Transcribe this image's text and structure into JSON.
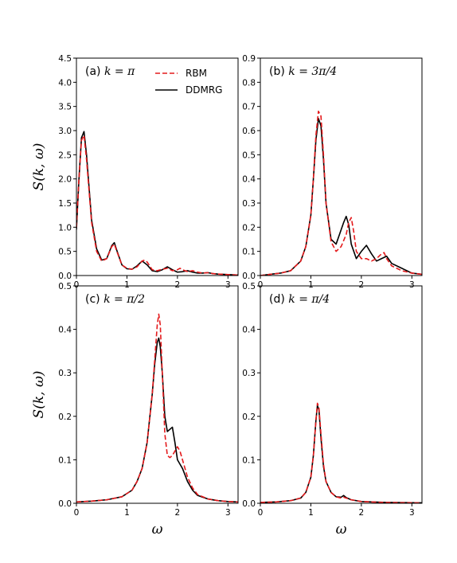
{
  "colors": {
    "RBM": "#e41a1c",
    "DDMRG": "#000000"
  },
  "chart_data": [
    {
      "type": "line",
      "panel": "(a)",
      "title_prefix": "(a) ",
      "title_math": "k = π",
      "xlabel": "",
      "ylabel": "S(k, ω)",
      "xlim": [
        0,
        3.2
      ],
      "ylim": [
        0,
        4.5
      ],
      "xticks": [
        0,
        1,
        2,
        3
      ],
      "yticks": [
        0.0,
        0.5,
        1.0,
        1.5,
        2.0,
        2.5,
        3.0,
        3.5,
        4.0,
        4.5
      ],
      "series": [
        {
          "name": "RBM",
          "style": "dashed",
          "x": [
            0,
            0.05,
            0.1,
            0.15,
            0.2,
            0.3,
            0.4,
            0.5,
            0.6,
            0.7,
            0.75,
            0.8,
            0.9,
            1.0,
            1.1,
            1.2,
            1.3,
            1.35,
            1.4,
            1.5,
            1.6,
            1.7,
            1.8,
            1.9,
            2.0,
            2.05,
            2.1,
            2.2,
            2.3,
            2.4,
            2.5,
            2.6,
            2.7,
            2.8,
            3.0,
            3.2
          ],
          "y": [
            1.0,
            2.0,
            2.8,
            2.9,
            2.4,
            1.1,
            0.5,
            0.3,
            0.35,
            0.6,
            0.65,
            0.5,
            0.22,
            0.15,
            0.13,
            0.18,
            0.3,
            0.32,
            0.28,
            0.12,
            0.1,
            0.13,
            0.15,
            0.1,
            0.12,
            0.15,
            0.12,
            0.08,
            0.1,
            0.07,
            0.05,
            0.06,
            0.04,
            0.03,
            0.02,
            0.01
          ]
        },
        {
          "name": "DDMRG",
          "style": "solid",
          "x": [
            0,
            0.05,
            0.1,
            0.15,
            0.2,
            0.3,
            0.4,
            0.5,
            0.6,
            0.7,
            0.75,
            0.8,
            0.9,
            1.0,
            1.1,
            1.2,
            1.3,
            1.4,
            1.5,
            1.6,
            1.7,
            1.8,
            1.9,
            2.0,
            2.1,
            2.2,
            2.3,
            2.4,
            2.5,
            2.6,
            2.7,
            2.8,
            3.0,
            3.2
          ],
          "y": [
            0.95,
            2.0,
            2.85,
            2.98,
            2.5,
            1.15,
            0.55,
            0.32,
            0.35,
            0.62,
            0.68,
            0.52,
            0.22,
            0.14,
            0.13,
            0.2,
            0.3,
            0.22,
            0.1,
            0.08,
            0.12,
            0.18,
            0.12,
            0.07,
            0.08,
            0.1,
            0.07,
            0.05,
            0.05,
            0.06,
            0.04,
            0.03,
            0.02,
            0.01
          ]
        }
      ]
    },
    {
      "type": "line",
      "panel": "(b)",
      "title_prefix": "(b) ",
      "title_math": "k = 3π/4",
      "xlabel": "",
      "ylabel": "",
      "xlim": [
        0,
        3.2
      ],
      "ylim": [
        0,
        0.9
      ],
      "xticks": [
        0,
        1,
        2,
        3
      ],
      "yticks": [
        0.0,
        0.1,
        0.2,
        0.3,
        0.4,
        0.5,
        0.6,
        0.7,
        0.8,
        0.9
      ],
      "series": [
        {
          "name": "RBM",
          "style": "dashed",
          "x": [
            0,
            0.2,
            0.4,
            0.6,
            0.8,
            0.9,
            1.0,
            1.05,
            1.1,
            1.15,
            1.2,
            1.25,
            1.3,
            1.4,
            1.5,
            1.6,
            1.7,
            1.75,
            1.8,
            1.85,
            1.9,
            2.0,
            2.1,
            2.2,
            2.3,
            2.4,
            2.45,
            2.5,
            2.6,
            2.8,
            3.0,
            3.2
          ],
          "y": [
            0.0,
            0.005,
            0.01,
            0.02,
            0.06,
            0.12,
            0.25,
            0.4,
            0.58,
            0.68,
            0.66,
            0.5,
            0.3,
            0.14,
            0.1,
            0.12,
            0.17,
            0.22,
            0.24,
            0.18,
            0.1,
            0.07,
            0.07,
            0.06,
            0.07,
            0.09,
            0.095,
            0.07,
            0.04,
            0.02,
            0.01,
            0.005
          ]
        },
        {
          "name": "DDMRG",
          "style": "solid",
          "x": [
            0,
            0.2,
            0.4,
            0.6,
            0.8,
            0.9,
            1.0,
            1.05,
            1.1,
            1.15,
            1.2,
            1.25,
            1.3,
            1.4,
            1.5,
            1.6,
            1.65,
            1.7,
            1.75,
            1.8,
            1.9,
            2.0,
            2.1,
            2.2,
            2.3,
            2.4,
            2.5,
            2.6,
            2.8,
            3.0,
            3.2
          ],
          "y": [
            0.0,
            0.005,
            0.01,
            0.02,
            0.06,
            0.12,
            0.25,
            0.4,
            0.56,
            0.65,
            0.62,
            0.48,
            0.3,
            0.15,
            0.13,
            0.19,
            0.22,
            0.245,
            0.21,
            0.13,
            0.07,
            0.1,
            0.125,
            0.09,
            0.06,
            0.07,
            0.08,
            0.05,
            0.03,
            0.01,
            0.005
          ]
        }
      ]
    },
    {
      "type": "line",
      "panel": "(c)",
      "title_prefix": "(c) ",
      "title_math": "k = π/2",
      "xlabel": "ω",
      "ylabel": "S(k, ω)",
      "xlim": [
        0,
        3.2
      ],
      "ylim": [
        0,
        0.5
      ],
      "xticks": [
        0,
        1,
        2,
        3
      ],
      "yticks": [
        0.0,
        0.1,
        0.2,
        0.3,
        0.4,
        0.5
      ],
      "series": [
        {
          "name": "RBM",
          "style": "dashed",
          "x": [
            0,
            0.3,
            0.6,
            0.9,
            1.1,
            1.2,
            1.3,
            1.4,
            1.5,
            1.55,
            1.6,
            1.63,
            1.66,
            1.7,
            1.75,
            1.8,
            1.85,
            1.9,
            1.95,
            2.0,
            2.05,
            2.1,
            2.2,
            2.3,
            2.4,
            2.6,
            2.8,
            3.0,
            3.2
          ],
          "y": [
            0.003,
            0.005,
            0.008,
            0.015,
            0.03,
            0.05,
            0.08,
            0.14,
            0.25,
            0.33,
            0.41,
            0.435,
            0.41,
            0.3,
            0.16,
            0.11,
            0.105,
            0.11,
            0.12,
            0.13,
            0.12,
            0.1,
            0.06,
            0.035,
            0.02,
            0.01,
            0.006,
            0.004,
            0.003
          ]
        },
        {
          "name": "DDMRG",
          "style": "solid",
          "x": [
            0,
            0.3,
            0.6,
            0.9,
            1.1,
            1.2,
            1.3,
            1.4,
            1.5,
            1.55,
            1.6,
            1.63,
            1.66,
            1.7,
            1.75,
            1.8,
            1.85,
            1.9,
            1.95,
            2.0,
            2.05,
            2.1,
            2.2,
            2.3,
            2.4,
            2.6,
            2.8,
            3.0,
            3.2
          ],
          "y": [
            0.003,
            0.005,
            0.008,
            0.015,
            0.03,
            0.05,
            0.08,
            0.14,
            0.25,
            0.32,
            0.37,
            0.38,
            0.36,
            0.3,
            0.2,
            0.165,
            0.17,
            0.175,
            0.14,
            0.1,
            0.09,
            0.08,
            0.05,
            0.03,
            0.018,
            0.01,
            0.006,
            0.004,
            0.003
          ]
        }
      ]
    },
    {
      "type": "line",
      "panel": "(d)",
      "title_prefix": "(d) ",
      "title_math": "k = π/4",
      "xlabel": "ω",
      "ylabel": "",
      "xlim": [
        0,
        3.2
      ],
      "ylim": [
        0,
        0.5
      ],
      "xticks": [
        0,
        1,
        2,
        3
      ],
      "yticks": [
        0.0,
        0.1,
        0.2,
        0.3,
        0.4,
        0.5
      ],
      "series": [
        {
          "name": "RBM",
          "style": "dashed",
          "x": [
            0,
            0.3,
            0.6,
            0.8,
            0.9,
            1.0,
            1.05,
            1.1,
            1.13,
            1.16,
            1.2,
            1.25,
            1.3,
            1.4,
            1.5,
            1.6,
            1.65,
            1.7,
            1.8,
            2.0,
            2.2,
            2.5,
            3.2
          ],
          "y": [
            0.002,
            0.003,
            0.006,
            0.012,
            0.025,
            0.06,
            0.11,
            0.19,
            0.23,
            0.22,
            0.16,
            0.09,
            0.05,
            0.025,
            0.015,
            0.012,
            0.014,
            0.012,
            0.008,
            0.004,
            0.003,
            0.002,
            0.001
          ]
        },
        {
          "name": "DDMRG",
          "style": "solid",
          "x": [
            0,
            0.3,
            0.6,
            0.8,
            0.9,
            1.0,
            1.05,
            1.1,
            1.13,
            1.16,
            1.2,
            1.25,
            1.3,
            1.4,
            1.5,
            1.6,
            1.65,
            1.7,
            1.8,
            2.0,
            2.2,
            2.5,
            3.2
          ],
          "y": [
            0.002,
            0.003,
            0.006,
            0.012,
            0.025,
            0.06,
            0.11,
            0.19,
            0.225,
            0.215,
            0.15,
            0.085,
            0.05,
            0.025,
            0.015,
            0.014,
            0.018,
            0.013,
            0.008,
            0.004,
            0.003,
            0.002,
            0.001
          ]
        }
      ]
    }
  ],
  "legend": {
    "placement": "top-right of panel (a)",
    "entries": [
      {
        "label": "RBM",
        "style": "dashed"
      },
      {
        "label": "DDMRG",
        "style": "solid"
      }
    ]
  }
}
